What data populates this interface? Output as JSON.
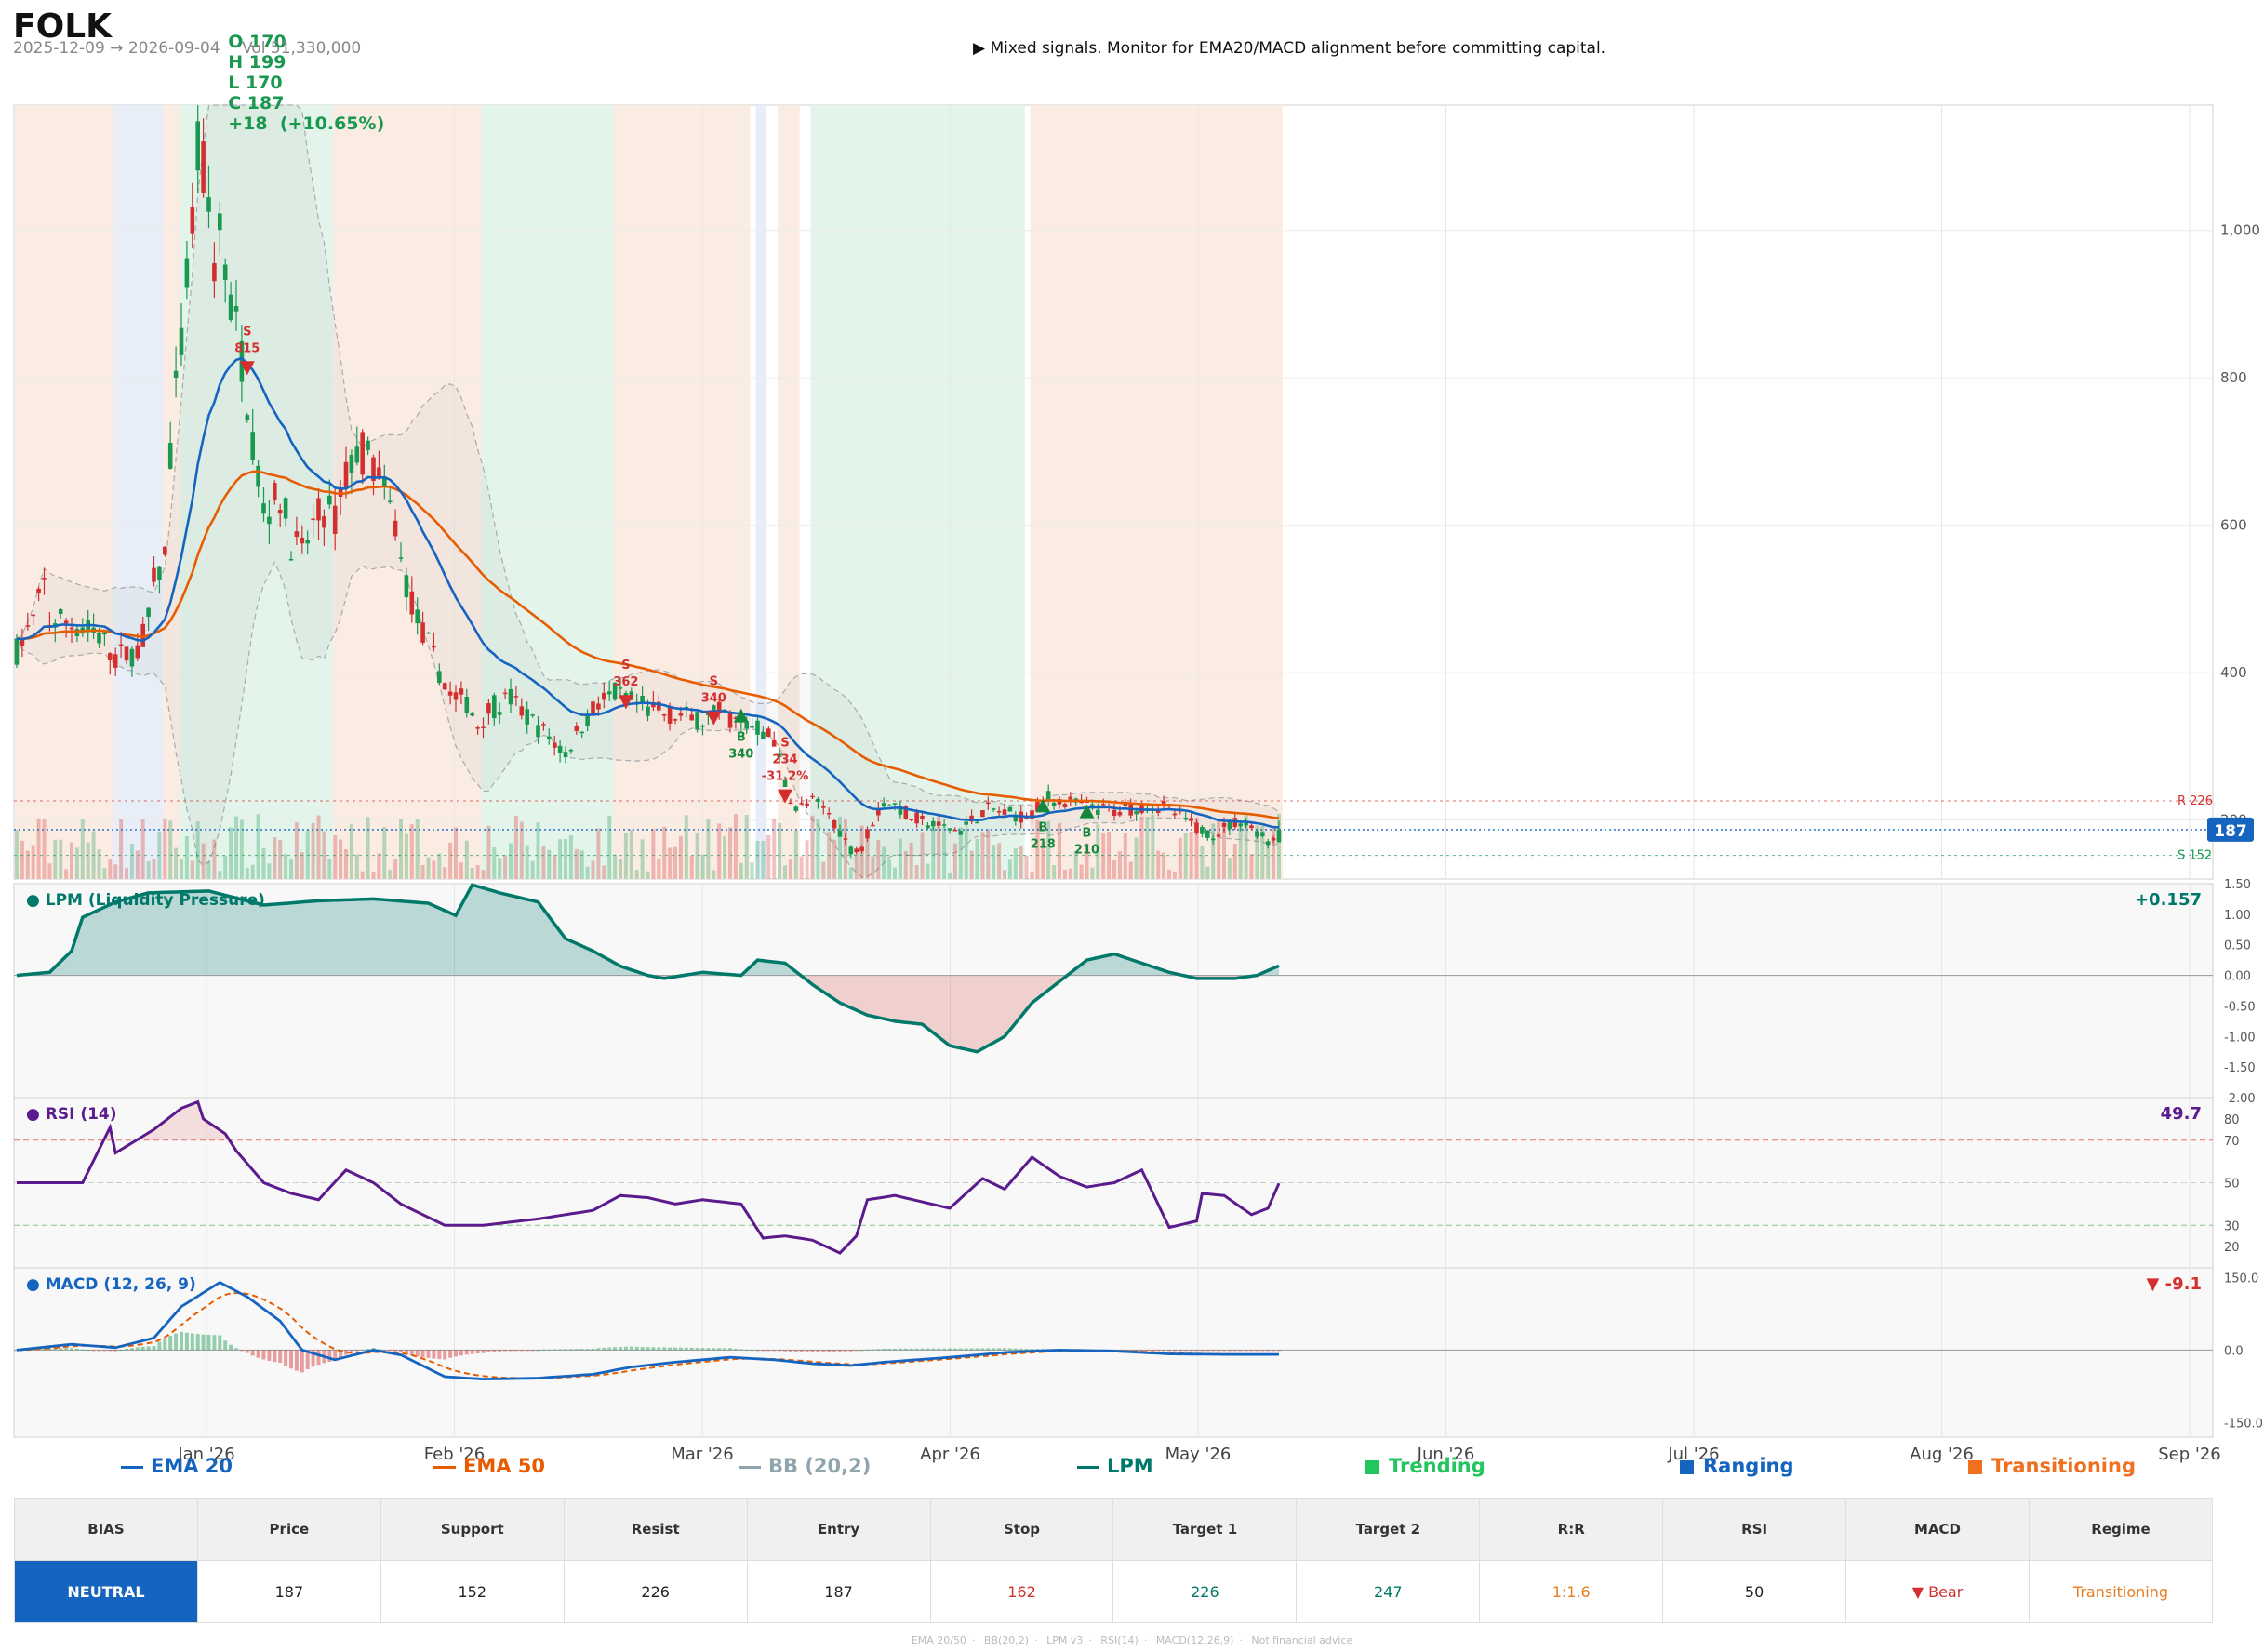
{
  "header": {
    "ticker": "FOLK",
    "ohlc": {
      "open": "O 170",
      "high": "H 199",
      "low": "L 170",
      "close": "C 187",
      "change": "+18  (+10.65%)"
    },
    "date_range": "2025-12-09 → 2026-09-04",
    "volume": "Vol 51,330,000",
    "signal": "▶  Mixed signals. Monitor for EMA20/MACD alignment before committing capital."
  },
  "colors": {
    "up": "#1a9850",
    "down": "#d32f2f",
    "ema20": "#1565c0",
    "ema50": "#e65c00",
    "bb": "#999999",
    "lpm": "#00796b",
    "rsi": "#5b1b8c",
    "macd": "#1565c0",
    "signal_line": "#e65c00",
    "trending_bg": "#e3f4ea",
    "ranging_bg": "#e8eef7",
    "transition_bg": "#faece3"
  },
  "legend": {
    "ema20": "EMA 20",
    "ema50": "EMA 50",
    "bb": "BB (20,2)",
    "lpm": "LPM",
    "trending": "Trending",
    "ranging": "Ranging",
    "transitioning": "Transitioning"
  },
  "panels": {
    "lpm_title": "● LPM (Liquidity Pressure)",
    "lpm_value": "+0.157",
    "rsi_title": "● RSI (14)",
    "rsi_value": "49.7",
    "macd_title": "● MACD (12, 26, 9)",
    "macd_value": "▼ -9.1"
  },
  "summary": {
    "headers": [
      "BIAS",
      "Price",
      "Support",
      "Resist",
      "Entry",
      "Stop",
      "Target 1",
      "Target 2",
      "R:R",
      "RSI",
      "MACD",
      "Regime"
    ],
    "values": [
      "NEUTRAL",
      "187",
      "152",
      "226",
      "187",
      "162",
      "226",
      "247",
      "1:1.6",
      "50",
      "▼ Bear",
      "Transitioning"
    ],
    "value_colors": [
      "#ffffff",
      "#222222",
      "#222222",
      "#222222",
      "#222222",
      "#d32f2f",
      "#00796b",
      "#00796b",
      "#e67e22",
      "#222222",
      "#d32f2f",
      "#e67e22"
    ]
  },
  "footer": [
    "EMA 20/50",
    "BB(20,2)",
    "LPM v3",
    "RSI(14)",
    "MACD(12,26,9)",
    "Not financial advice"
  ],
  "chart_data": {
    "type": "candlestick",
    "x_labels": [
      "Jan '26",
      "Feb '26",
      "Mar '26",
      "Apr '26",
      "May '26",
      "Jun '26",
      "Jul '26",
      "Aug '26",
      "Sep '26"
    ],
    "price_ticks": [
      200,
      400,
      600,
      800,
      1000
    ],
    "price_ylim": [
      120,
      1170
    ],
    "lpm_ticks": [
      "1.50",
      "1.00",
      "0.50",
      "0.00",
      "-0.50",
      "-1.00",
      "-1.50",
      "-2.00"
    ],
    "lpm_ylim": [
      -2.0,
      1.5
    ],
    "rsi_ticks": [
      80,
      70,
      50,
      30,
      20
    ],
    "rsi_ylim": [
      10,
      90
    ],
    "macd_ticks": [
      "150.0",
      "0.0",
      "-150.0"
    ],
    "macd_ylim": [
      -180,
      170
    ],
    "last_price_label": "187",
    "resistance": {
      "value": 226,
      "label": "R 226"
    },
    "support": {
      "value": 152,
      "label": "S 152"
    },
    "regimes": [
      {
        "from": 0,
        "to": 17,
        "type": "transition"
      },
      {
        "from": 18,
        "to": 26,
        "type": "ranging"
      },
      {
        "from": 27,
        "to": 29,
        "type": "transition"
      },
      {
        "from": 30,
        "to": 57,
        "type": "trending"
      },
      {
        "from": 58,
        "to": 84,
        "type": "transition"
      },
      {
        "from": 85,
        "to": 108,
        "type": "trending"
      },
      {
        "from": 109,
        "to": 133,
        "type": "transition"
      },
      {
        "from": 135,
        "to": 136,
        "type": "ranging"
      },
      {
        "from": 139,
        "to": 142,
        "type": "transition"
      },
      {
        "from": 145,
        "to": 183,
        "type": "trending"
      },
      {
        "from": 185,
        "to": 230,
        "type": "transition"
      }
    ],
    "markers": [
      {
        "i": 42,
        "type": "sell",
        "price": 815,
        "lines": [
          "S",
          "815"
        ]
      },
      {
        "i": 111,
        "type": "sell",
        "price": 362,
        "lines": [
          "S",
          "362"
        ]
      },
      {
        "i": 127,
        "type": "sell",
        "price": 340,
        "lines": [
          "S",
          "340"
        ]
      },
      {
        "i": 132,
        "type": "buy",
        "price": 340,
        "lines": [
          "B",
          "340"
        ]
      },
      {
        "i": 140,
        "type": "sell",
        "price": 234,
        "lines": [
          "S",
          "234",
          "-31.2%"
        ]
      },
      {
        "i": 187,
        "type": "buy",
        "price": 218,
        "lines": [
          "B",
          "218"
        ]
      },
      {
        "i": 195,
        "type": "buy",
        "price": 210,
        "lines": [
          "B",
          "210"
        ]
      }
    ],
    "path_anchors": [
      [
        0,
        430
      ],
      [
        3,
        470
      ],
      [
        5,
        520
      ],
      [
        6,
        470
      ],
      [
        9,
        470
      ],
      [
        12,
        460
      ],
      [
        15,
        450
      ],
      [
        18,
        420
      ],
      [
        22,
        430
      ],
      [
        24,
        470
      ],
      [
        25,
        520
      ],
      [
        27,
        560
      ],
      [
        28,
        700
      ],
      [
        30,
        850
      ],
      [
        32,
        1010
      ],
      [
        33,
        1100
      ],
      [
        34,
        1080
      ],
      [
        36,
        960
      ],
      [
        37,
        1000
      ],
      [
        39,
        900
      ],
      [
        41,
        830
      ],
      [
        43,
        720
      ],
      [
        45,
        620
      ],
      [
        48,
        640
      ],
      [
        50,
        580
      ],
      [
        52,
        560
      ],
      [
        54,
        600
      ],
      [
        56,
        620
      ],
      [
        58,
        610
      ],
      [
        61,
        690
      ],
      [
        63,
        700
      ],
      [
        65,
        680
      ],
      [
        67,
        640
      ],
      [
        69,
        600
      ],
      [
        70,
        550
      ],
      [
        73,
        470
      ],
      [
        76,
        420
      ],
      [
        79,
        370
      ],
      [
        82,
        360
      ],
      [
        84,
        330
      ],
      [
        86,
        350
      ],
      [
        90,
        365
      ],
      [
        93,
        340
      ],
      [
        96,
        320
      ],
      [
        100,
        290
      ],
      [
        103,
        330
      ],
      [
        106,
        360
      ],
      [
        109,
        370
      ],
      [
        112,
        360
      ],
      [
        115,
        350
      ],
      [
        118,
        345
      ],
      [
        122,
        340
      ],
      [
        125,
        335
      ],
      [
        128,
        345
      ],
      [
        132,
        330
      ],
      [
        135,
        325
      ],
      [
        138,
        310
      ],
      [
        140,
        250
      ],
      [
        142,
        215
      ],
      [
        145,
        225
      ],
      [
        148,
        210
      ],
      [
        150,
        185
      ],
      [
        152,
        160
      ],
      [
        154,
        165
      ],
      [
        156,
        200
      ],
      [
        158,
        225
      ],
      [
        160,
        220
      ],
      [
        163,
        205
      ],
      [
        166,
        195
      ],
      [
        169,
        190
      ],
      [
        172,
        185
      ],
      [
        174,
        200
      ],
      [
        177,
        215
      ],
      [
        180,
        210
      ],
      [
        183,
        205
      ],
      [
        185,
        210
      ],
      [
        188,
        230
      ],
      [
        191,
        225
      ],
      [
        194,
        220
      ],
      [
        197,
        215
      ],
      [
        200,
        212
      ],
      [
        203,
        216
      ],
      [
        206,
        220
      ],
      [
        209,
        218
      ],
      [
        212,
        205
      ],
      [
        215,
        190
      ],
      [
        218,
        180
      ],
      [
        220,
        190
      ],
      [
        223,
        200
      ],
      [
        226,
        185
      ],
      [
        228,
        170
      ],
      [
        230,
        187
      ]
    ],
    "lpm_anchors": [
      [
        0,
        0
      ],
      [
        6,
        0.05
      ],
      [
        10,
        0.4
      ],
      [
        12,
        0.95
      ],
      [
        18,
        1.2
      ],
      [
        24,
        1.35
      ],
      [
        35,
        1.38
      ],
      [
        45,
        1.15
      ],
      [
        55,
        1.22
      ],
      [
        65,
        1.25
      ],
      [
        75,
        1.18
      ],
      [
        80,
        0.98
      ],
      [
        83,
        1.48
      ],
      [
        88,
        1.35
      ],
      [
        95,
        1.2
      ],
      [
        100,
        0.6
      ],
      [
        105,
        0.4
      ],
      [
        110,
        0.15
      ],
      [
        115,
        0.0
      ],
      [
        118,
        -0.05
      ],
      [
        125,
        0.05
      ],
      [
        132,
        0.0
      ],
      [
        135,
        0.25
      ],
      [
        140,
        0.2
      ],
      [
        145,
        -0.15
      ],
      [
        150,
        -0.45
      ],
      [
        155,
        -0.65
      ],
      [
        160,
        -0.75
      ],
      [
        165,
        -0.8
      ],
      [
        170,
        -1.15
      ],
      [
        175,
        -1.25
      ],
      [
        180,
        -1.0
      ],
      [
        185,
        -0.45
      ],
      [
        190,
        -0.1
      ],
      [
        195,
        0.25
      ],
      [
        200,
        0.35
      ],
      [
        205,
        0.2
      ],
      [
        210,
        0.05
      ],
      [
        215,
        -0.05
      ],
      [
        222,
        -0.05
      ],
      [
        226,
        0.0
      ],
      [
        230,
        0.157
      ]
    ],
    "rsi_anchors": [
      [
        0,
        50
      ],
      [
        12,
        50
      ],
      [
        17,
        76
      ],
      [
        18,
        64
      ],
      [
        25,
        75
      ],
      [
        30,
        85
      ],
      [
        33,
        88
      ],
      [
        34,
        80
      ],
      [
        38,
        73
      ],
      [
        40,
        65
      ],
      [
        45,
        50
      ],
      [
        50,
        45
      ],
      [
        55,
        42
      ],
      [
        60,
        56
      ],
      [
        65,
        50
      ],
      [
        70,
        40
      ],
      [
        78,
        30
      ],
      [
        85,
        30
      ],
      [
        95,
        33
      ],
      [
        105,
        37
      ],
      [
        110,
        44
      ],
      [
        115,
        43
      ],
      [
        120,
        40
      ],
      [
        125,
        42
      ],
      [
        132,
        40
      ],
      [
        136,
        24
      ],
      [
        140,
        25
      ],
      [
        145,
        23
      ],
      [
        150,
        17
      ],
      [
        153,
        25
      ],
      [
        155,
        42
      ],
      [
        160,
        44
      ],
      [
        170,
        38
      ],
      [
        176,
        52
      ],
      [
        180,
        47
      ],
      [
        185,
        62
      ],
      [
        190,
        53
      ],
      [
        195,
        48
      ],
      [
        200,
        50
      ],
      [
        205,
        56
      ],
      [
        210,
        29
      ],
      [
        215,
        32
      ],
      [
        216,
        45
      ],
      [
        220,
        44
      ],
      [
        225,
        35
      ],
      [
        228,
        38
      ],
      [
        230,
        49.7
      ]
    ],
    "macd_anchors": [
      [
        0,
        0
      ],
      [
        10,
        12
      ],
      [
        18,
        5
      ],
      [
        25,
        25
      ],
      [
        30,
        90
      ],
      [
        37,
        140
      ],
      [
        42,
        110
      ],
      [
        48,
        60
      ],
      [
        52,
        0
      ],
      [
        58,
        -20
      ],
      [
        65,
        0
      ],
      [
        70,
        -10
      ],
      [
        78,
        -55
      ],
      [
        85,
        -60
      ],
      [
        95,
        -58
      ],
      [
        105,
        -50
      ],
      [
        112,
        -35
      ],
      [
        120,
        -25
      ],
      [
        130,
        -15
      ],
      [
        138,
        -20
      ],
      [
        145,
        -28
      ],
      [
        152,
        -32
      ],
      [
        158,
        -25
      ],
      [
        170,
        -15
      ],
      [
        180,
        -5
      ],
      [
        190,
        0
      ],
      [
        200,
        -2
      ],
      [
        210,
        -8
      ],
      [
        220,
        -9
      ],
      [
        230,
        -9.1
      ]
    ]
  }
}
